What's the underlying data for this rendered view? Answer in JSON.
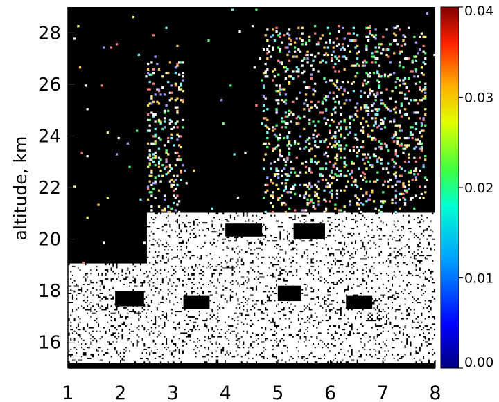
{
  "chart_data": {
    "type": "heatmap",
    "title": "",
    "xlabel": "",
    "ylabel": "altitude,  km",
    "xlim": [
      1,
      8
    ],
    "ylim": [
      15,
      29
    ],
    "x_ticks": [
      "1",
      "2",
      "3",
      "4",
      "5",
      "6",
      "7",
      "8"
    ],
    "y_ticks": [
      "16",
      "18",
      "20",
      "22",
      "24",
      "26",
      "28"
    ],
    "x_tick_values": [
      1,
      2,
      3,
      4,
      5,
      6,
      7,
      8
    ],
    "y_tick_values": [
      16,
      18,
      20,
      22,
      24,
      26,
      28
    ],
    "colorbar": {
      "range": [
        0.0,
        0.04
      ],
      "ticks": [
        "0.00",
        "0.01",
        "0.02",
        "0.03",
        "0.04"
      ],
      "tick_values": [
        0.0,
        0.01,
        0.02,
        0.03,
        0.04
      ],
      "colormap": "rainbow (IDL)"
    },
    "background_color": "#000000",
    "saturated_color": "#ffffff",
    "regions_saturated": [
      {
        "x": [
          1.0,
          8.0
        ],
        "y": [
          15.2,
          19.0
        ]
      },
      {
        "x": [
          2.5,
          8.0
        ],
        "y": [
          19.0,
          21.0
        ]
      }
    ],
    "regions_structured": [
      {
        "x": [
          4.7,
          7.8
        ],
        "y": [
          21.0,
          28.3
        ]
      },
      {
        "x": [
          2.5,
          3.2
        ],
        "y": [
          20.0,
          27.0
        ]
      }
    ]
  }
}
